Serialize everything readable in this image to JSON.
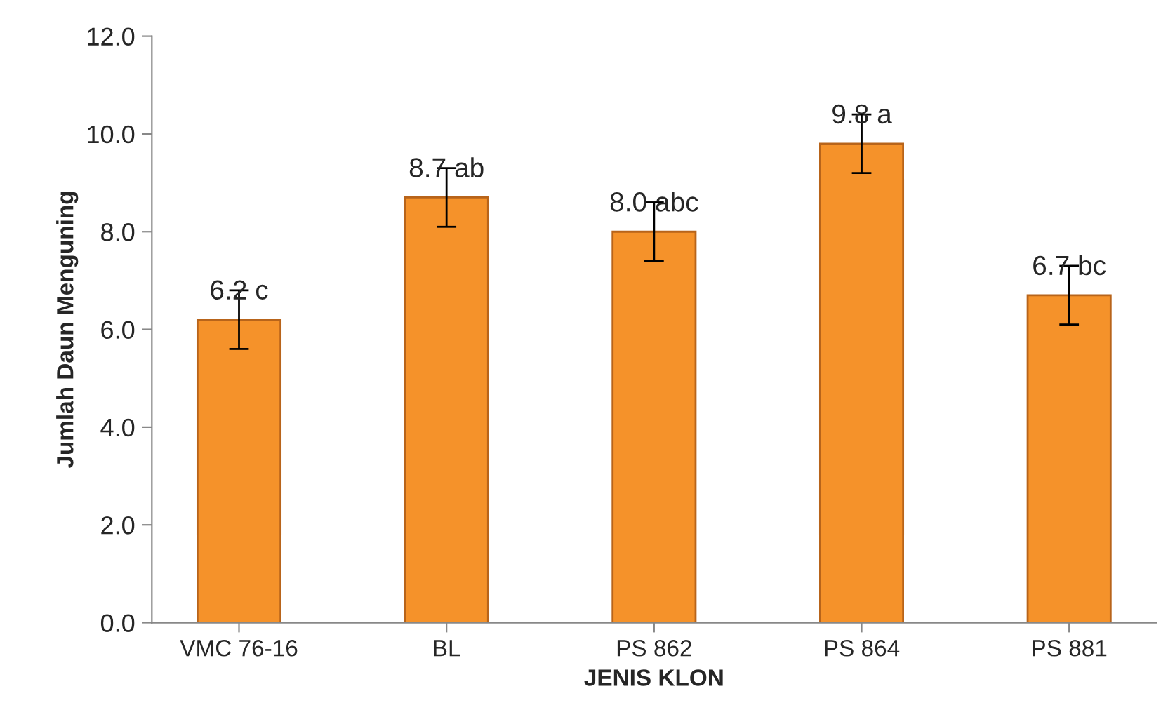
{
  "chart_data": {
    "type": "bar",
    "xlabel": "JENIS KLON",
    "ylabel": "Jumlah Daun Menguning",
    "categories": [
      "VMC 76-16",
      "BL",
      "PS 862",
      "PS 864",
      "PS 881"
    ],
    "values": [
      6.2,
      8.7,
      8.0,
      9.8,
      6.7
    ],
    "errors": [
      0.6,
      0.6,
      0.6,
      0.6,
      0.6
    ],
    "value_labels": [
      "6.2 c",
      "8.7 ab",
      "8.0 abc",
      "9.8 a",
      "6.7 bc"
    ],
    "color": "#f5922a",
    "ylim": [
      0,
      12
    ],
    "yticks": [
      {
        "value": 0,
        "label": "0.0"
      },
      {
        "value": 2,
        "label": "2.0"
      },
      {
        "value": 4,
        "label": "4.0"
      },
      {
        "value": 6,
        "label": "6.0"
      },
      {
        "value": 8,
        "label": "8.0"
      },
      {
        "value": 10,
        "label": "10.0"
      },
      {
        "value": 12,
        "label": "12.0"
      }
    ],
    "grid": false
  }
}
